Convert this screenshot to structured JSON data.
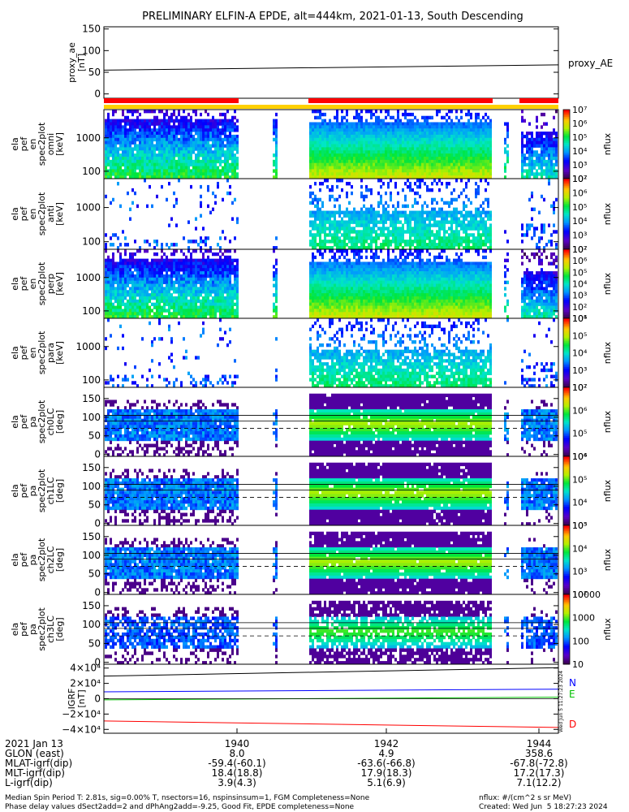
{
  "title": "PRELIMINARY ELFIN-A EPDE, alt=444km, 2021-01-13, South Descending",
  "chart_data": [
    {
      "type": "line",
      "ylabel": "proxy_ae\n[nT]",
      "ylim": [
        -10,
        155
      ],
      "yticks": [
        0,
        50,
        100,
        150
      ],
      "ytick_labels": [
        "0",
        "50",
        "100",
        "150"
      ],
      "series": [
        {
          "name": "proxy_AE",
          "x": [
            0,
            1
          ],
          "y": [
            55,
            67
          ]
        }
      ]
    },
    {
      "type": "heatmap",
      "ylabel": "ela\npef\nen\nspec2plot\nomni\n[keV]",
      "yscale": "log",
      "ylim": [
        60,
        7000
      ],
      "yticks": [
        100,
        1000
      ],
      "ytick_labels": [
        "100",
        "1000"
      ],
      "colorbar": {
        "label": "nflux",
        "ticks": [
          "10²",
          "10³",
          "10⁴",
          "10⁵",
          "10⁶",
          "10⁷"
        ]
      }
    },
    {
      "type": "heatmap",
      "ylabel": "ela\npef\nen\nspec2plot\nanti\n[keV]",
      "yscale": "log",
      "ylim": [
        60,
        7000
      ],
      "yticks": [
        100,
        1000
      ],
      "ytick_labels": [
        "100",
        "1000"
      ],
      "colorbar": {
        "label": "nflux",
        "ticks": [
          "10²",
          "10³",
          "10⁴",
          "10⁵",
          "10⁶",
          "10⁷"
        ]
      }
    },
    {
      "type": "heatmap",
      "ylabel": "ela\npef\nen\nspec2plot\nperp\n[keV]",
      "yscale": "log",
      "ylim": [
        60,
        7000
      ],
      "yticks": [
        100,
        1000
      ],
      "ytick_labels": [
        "100",
        "1000"
      ],
      "colorbar": {
        "label": "nflux",
        "ticks": [
          "10¹",
          "10²",
          "10³",
          "10⁴",
          "10⁵",
          "10⁶",
          "10⁷"
        ]
      }
    },
    {
      "type": "heatmap",
      "ylabel": "ela\npef\nen\nspec2plot\npara\n[keV]",
      "yscale": "log",
      "ylim": [
        60,
        7000
      ],
      "yticks": [
        100,
        1000
      ],
      "ytick_labels": [
        "100",
        "1000"
      ],
      "colorbar": {
        "label": "nflux",
        "ticks": [
          "10²",
          "10³",
          "10⁴",
          "10⁵",
          "10⁶"
        ]
      }
    },
    {
      "type": "heatmap",
      "ylabel": "ela\npef\npa\nspec2plot\nch0LC\n[deg]",
      "ylim": [
        -5,
        180
      ],
      "yticks": [
        0,
        50,
        100,
        150
      ],
      "ytick_labels": [
        "0",
        "50",
        "100",
        "150"
      ],
      "colorbar": {
        "label": "nflux",
        "ticks": [
          "10⁴",
          "10⁵",
          "10⁶",
          "10⁷"
        ]
      }
    },
    {
      "type": "heatmap",
      "ylabel": "ela\npef\npa\nspec2plot\nch1LC\n[deg]",
      "ylim": [
        -5,
        180
      ],
      "yticks": [
        0,
        50,
        100,
        150
      ],
      "ytick_labels": [
        "0",
        "50",
        "100",
        "150"
      ],
      "colorbar": {
        "label": "nflux",
        "ticks": [
          "10³",
          "10⁴",
          "10⁵",
          "10⁶"
        ]
      }
    },
    {
      "type": "heatmap",
      "ylabel": "ela\npef\npa\nspec2plot\nch2LC\n[deg]",
      "ylim": [
        -5,
        180
      ],
      "yticks": [
        0,
        50,
        100,
        150
      ],
      "ytick_labels": [
        "0",
        "50",
        "100",
        "150"
      ],
      "colorbar": {
        "label": "nflux",
        "ticks": [
          "10²",
          "10³",
          "10⁴",
          "10⁵"
        ]
      }
    },
    {
      "type": "heatmap",
      "ylabel": "ela\npef\npa\nspec2plot\nch3LC\n[deg]",
      "ylim": [
        -5,
        180
      ],
      "yticks": [
        0,
        50,
        100,
        150
      ],
      "ytick_labels": [
        "0",
        "50",
        "100",
        "150"
      ],
      "colorbar": {
        "label": "nflux",
        "ticks": [
          "10",
          "100",
          "1000",
          "10000"
        ]
      }
    },
    {
      "type": "line",
      "ylabel": "IGRF\n[nT]",
      "ylim": [
        -45000,
        45000
      ],
      "yticks": [
        -40000,
        -20000,
        0,
        20000,
        40000
      ],
      "ytick_labels": [
        "−4×10⁴",
        "−2×10⁴",
        "0",
        "2×10⁴",
        "4×10⁴"
      ],
      "series": [
        {
          "name": "N",
          "color": "#0000ff",
          "x": [
            0,
            1
          ],
          "y": [
            9000,
            12500
          ]
        },
        {
          "name": "E",
          "color": "#00c000",
          "x": [
            0,
            1
          ],
          "y": [
            -1500,
            2000
          ]
        },
        {
          "name": "D",
          "color": "#ff0000",
          "x": [
            0,
            1
          ],
          "y": [
            -29000,
            -37500
          ]
        },
        {
          "name": "",
          "color": "#000000",
          "x": [
            0,
            1
          ],
          "y": [
            29500,
            40500
          ]
        }
      ]
    }
  ],
  "axis": {
    "time_labels": [
      "1940",
      "1942",
      "1944"
    ],
    "rows": [
      {
        "label": "2021 Jan 13",
        "values": [
          "",
          "",
          ""
        ]
      },
      {
        "label": "GLON (east)",
        "values": [
          "8.0",
          "4.9",
          "358.6"
        ]
      },
      {
        "label": "MLAT-igrf(dip)",
        "values": [
          "-59.4(-60.1)",
          "-63.6(-66.8)",
          "-67.8(-72.8)"
        ]
      },
      {
        "label": "MLT-igrf(dip)",
        "values": [
          "18.4(18.8)",
          "17.9(18.3)",
          "17.2(17.3)"
        ]
      },
      {
        "label": "L-igrf(dip)",
        "values": [
          "3.9(4.3)",
          "5.1(6.9)",
          "7.1(12.2)"
        ]
      }
    ]
  },
  "footer": {
    "line1": "Median Spin Period T: 2.81s, sig=0.00% T, nsectors=16, nspinsinsum=1, FGM Completeness=None",
    "line2": "Phase delay values dSect2add=2 and dPhAng2add=-9.25, Good Fit, EPDE completeness=None",
    "units": "nflux: #/(cm^2 s sr MeV)",
    "created": "Created: Wed Jun  5 18:27:23 2024"
  },
  "side_stamp": "Wed Jun  5 11:27:23 2024"
}
